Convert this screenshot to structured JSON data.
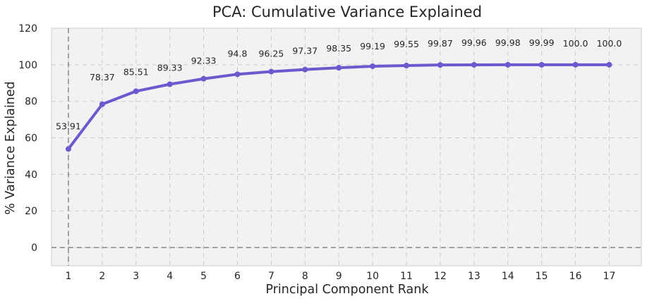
{
  "chart_data": {
    "type": "line",
    "title": "PCA: Cumulative Variance Explained",
    "xlabel": "Principal Component Rank",
    "ylabel": "% Variance Explained",
    "x": [
      1,
      2,
      3,
      4,
      5,
      6,
      7,
      8,
      9,
      10,
      11,
      12,
      13,
      14,
      15,
      16,
      17
    ],
    "series": [
      {
        "values": [
          53.91,
          78.37,
          85.51,
          89.33,
          92.33,
          94.8,
          96.25,
          97.37,
          98.35,
          99.19,
          99.55,
          99.87,
          99.96,
          99.98,
          99.99,
          100.0,
          100.0
        ]
      }
    ],
    "data_labels": [
      "53.91",
      "78.37",
      "85.51",
      "89.33",
      "92.33",
      "94.8",
      "96.25",
      "97.37",
      "98.35",
      "99.19",
      "99.55",
      "99.87",
      "99.96",
      "99.98",
      "99.99",
      "100.0",
      "100.0"
    ],
    "xlim": [
      0.5,
      17.95
    ],
    "ylim": [
      -10,
      120
    ],
    "yticks": [
      0,
      20,
      40,
      60,
      80,
      100,
      120
    ],
    "grid": true,
    "reference_lines": {
      "horizontal_y": 0,
      "vertical_x": 1
    },
    "colors": {
      "line": "#6a5acd",
      "plot_background": "#f2f2f2",
      "grid": "#cccccc",
      "reference": "#555555",
      "axes_border": "#cccccc"
    }
  }
}
